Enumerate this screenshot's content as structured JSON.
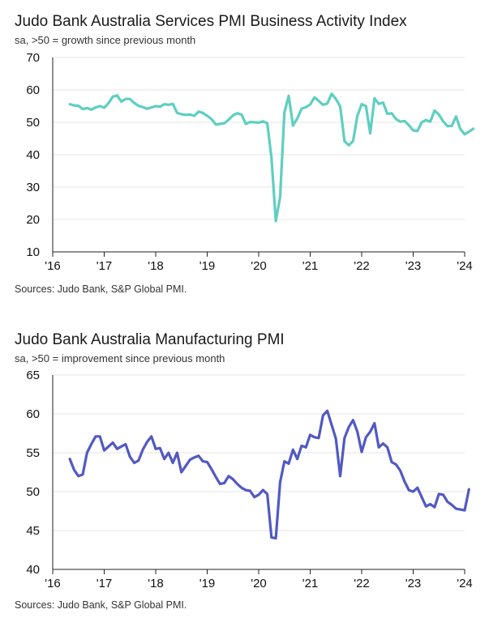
{
  "chart_data": [
    {
      "type": "line",
      "title": "Judo Bank Australia Services PMI Business Activity Index",
      "subtitle": "sa, >50 = growth since previous month",
      "source": "Sources: Judo Bank, S&P Global PMI.",
      "color": "#5ecfc0",
      "ylim": [
        10,
        70
      ],
      "yticks": [
        10,
        20,
        30,
        40,
        50,
        60,
        70
      ],
      "xlim": [
        2016,
        2024
      ],
      "xticks": [
        2016,
        2017,
        2018,
        2019,
        2020,
        2021,
        2022,
        2023,
        2024
      ],
      "xtick_labels": [
        "'16",
        "'17",
        "'18",
        "'19",
        "'20",
        "'21",
        "'22",
        "'23",
        "'24"
      ],
      "series": [
        {
          "name": "Services PMI Business Activity Index",
          "start": 2016.333,
          "step": 0.08333,
          "values": [
            55.6,
            55.2,
            55.1,
            54.1,
            54.4,
            53.9,
            54.6,
            55.0,
            54.5,
            55.9,
            57.9,
            58.3,
            56.4,
            57.2,
            57.2,
            56.0,
            55.1,
            54.7,
            54.2,
            54.6,
            55.0,
            54.8,
            55.6,
            55.4,
            55.7,
            52.9,
            52.5,
            52.3,
            52.4,
            52.0,
            53.3,
            52.9,
            52.0,
            51.0,
            49.3,
            49.5,
            49.7,
            50.8,
            52.1,
            52.8,
            52.4,
            49.5,
            50.1,
            50.0,
            49.9,
            50.3,
            49.7,
            39.0,
            19.5,
            26.9,
            53.0,
            58.2,
            49.0,
            51.2,
            54.2,
            54.7,
            55.5,
            57.7,
            56.6,
            55.4,
            55.8,
            58.8,
            57.2,
            54.9,
            44.2,
            42.9,
            44.2,
            52.0,
            55.6,
            55.0,
            46.6,
            57.4,
            55.7,
            56.1,
            52.6,
            52.8,
            51.0,
            50.2,
            50.4,
            49.1,
            47.5,
            47.3,
            50.0,
            50.7,
            50.2,
            53.6,
            52.4,
            50.3,
            48.8,
            48.9,
            51.8,
            47.9,
            46.3,
            47.1,
            48.0
          ]
        }
      ]
    },
    {
      "type": "line",
      "title": "Judo Bank Australia Manufacturing PMI",
      "subtitle": "sa, >50 = improvement since previous month",
      "source": "Sources: Judo Bank, S&P Global PMI.",
      "color": "#5159c4",
      "ylim": [
        40,
        65
      ],
      "yticks": [
        40,
        45,
        50,
        55,
        60,
        65
      ],
      "xlim": [
        2016,
        2024
      ],
      "xticks": [
        2016,
        2017,
        2018,
        2019,
        2020,
        2021,
        2022,
        2023,
        2024
      ],
      "xtick_labels": [
        "'16",
        "'17",
        "'18",
        "'19",
        "'20",
        "'21",
        "'22",
        "'23",
        "'24"
      ],
      "series": [
        {
          "name": "Manufacturing PMI",
          "start": 2016.333,
          "step": 0.08333,
          "values": [
            54.2,
            52.8,
            52.0,
            52.2,
            55.0,
            56.1,
            57.1,
            57.1,
            55.3,
            55.8,
            56.3,
            55.5,
            55.8,
            56.1,
            54.5,
            53.7,
            54.0,
            55.4,
            56.4,
            57.1,
            55.5,
            55.6,
            54.2,
            55.0,
            53.7,
            55.0,
            52.5,
            53.3,
            54.1,
            54.4,
            54.6,
            53.9,
            53.8,
            52.9,
            51.9,
            51.0,
            51.1,
            52.0,
            51.6,
            51.0,
            50.5,
            50.2,
            50.1,
            49.3,
            49.6,
            50.2,
            49.7,
            44.1,
            44.0,
            51.2,
            53.9,
            53.6,
            55.4,
            54.2,
            55.9,
            55.7,
            57.3,
            57.0,
            56.9,
            59.8,
            60.4,
            58.6,
            56.8,
            52.0,
            56.9,
            58.3,
            59.2,
            57.7,
            55.1,
            57.0,
            57.7,
            58.8,
            55.7,
            56.2,
            55.7,
            53.8,
            53.5,
            52.7,
            51.3,
            50.2,
            50.0,
            50.5,
            49.3,
            48.1,
            48.4,
            48.0,
            49.7,
            49.6,
            48.7,
            48.3,
            47.8,
            47.7,
            47.6,
            50.3
          ]
        }
      ]
    }
  ]
}
